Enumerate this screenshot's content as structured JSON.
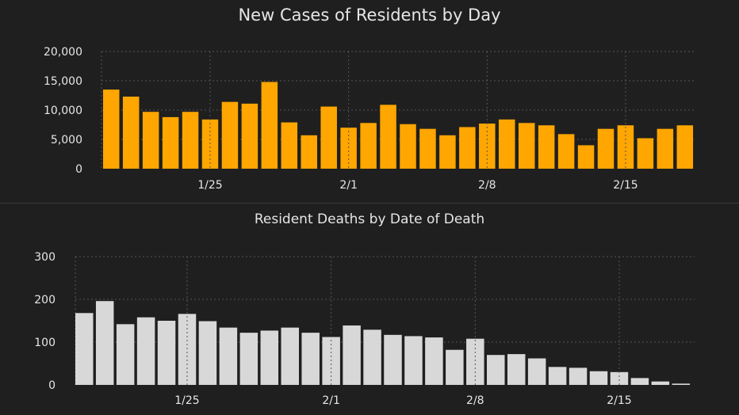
{
  "colors": {
    "background": "#1f1f1f",
    "cases_bar": "#ffa600",
    "deaths_bar": "#d8d8d8",
    "text": "#e6e6e6",
    "grid": "#555555"
  },
  "chart_data": [
    {
      "type": "bar",
      "title": "New Cases of Residents by Day",
      "xlabel": "",
      "ylabel": "",
      "ylim": [
        0,
        20000
      ],
      "yticks": [
        0,
        5000,
        10000,
        15000,
        20000
      ],
      "ytick_labels": [
        "0",
        "5,000",
        "10,000",
        "15,000",
        "20,000"
      ],
      "categories": [
        "1/20",
        "1/21",
        "1/22",
        "1/23",
        "1/24",
        "1/25",
        "1/26",
        "1/27",
        "1/28",
        "1/29",
        "1/30",
        "1/31",
        "2/1",
        "2/2",
        "2/3",
        "2/4",
        "2/5",
        "2/6",
        "2/7",
        "2/8",
        "2/9",
        "2/10",
        "2/11",
        "2/12",
        "2/13",
        "2/14",
        "2/15",
        "2/16",
        "2/17",
        "2/18"
      ],
      "xtick_labels": [
        "1/25",
        "2/1",
        "2/8",
        "2/15"
      ],
      "values": [
        13500,
        12300,
        9700,
        8800,
        9700,
        8400,
        11400,
        11100,
        14800,
        7900,
        5700,
        10600,
        7000,
        7800,
        10900,
        7600,
        6800,
        5700,
        7100,
        7700,
        8400,
        7800,
        7400,
        5900,
        4000,
        6800,
        7400,
        5200,
        6800,
        7400
      ],
      "grid": true
    },
    {
      "type": "bar",
      "title": "Resident Deaths by Date of Death",
      "xlabel": "",
      "ylabel": "",
      "ylim": [
        0,
        300
      ],
      "yticks": [
        0,
        100,
        200,
        300
      ],
      "ytick_labels": [
        "0",
        "100",
        "200",
        "300"
      ],
      "categories": [
        "1/20",
        "1/21",
        "1/22",
        "1/23",
        "1/24",
        "1/25",
        "1/26",
        "1/27",
        "1/28",
        "1/29",
        "1/30",
        "1/31",
        "2/1",
        "2/2",
        "2/3",
        "2/4",
        "2/5",
        "2/6",
        "2/7",
        "2/8",
        "2/9",
        "2/10",
        "2/11",
        "2/12",
        "2/13",
        "2/14",
        "2/15",
        "2/16",
        "2/17",
        "2/18",
        "2/19"
      ],
      "xtick_labels": [
        "1/25",
        "2/1",
        "2/8",
        "2/15"
      ],
      "values": [
        168,
        196,
        142,
        158,
        150,
        166,
        149,
        134,
        122,
        127,
        134,
        122,
        112,
        139,
        129,
        117,
        114,
        111,
        82,
        108,
        70,
        72,
        62,
        42,
        40,
        32,
        30,
        16,
        8,
        3,
        0
      ],
      "grid": true
    }
  ]
}
